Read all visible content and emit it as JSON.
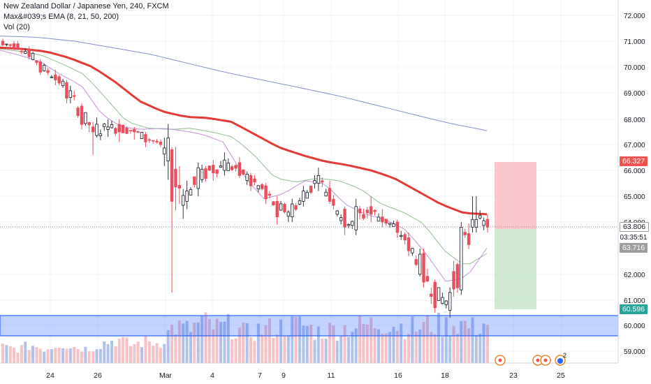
{
  "legend": {
    "title": "New Zealand Dollar / Japanese Yen, 240, FXCM",
    "ema": "Max&#039;s EMA (8, 21, 50, 200)",
    "vol": "Vol (20)"
  },
  "price_labels": {
    "stop": "66.327",
    "last": "63.806",
    "countdown": "03:35:51",
    "entry": "63.716",
    "target": "60.596"
  },
  "colors": {
    "up": "#53b987",
    "down": "#eb4d5c",
    "ema50": "#e53935",
    "ema200": "#7f8fc9",
    "ema21": "#8fbf8f",
    "ema8": "#c58fd6",
    "support_zone": "#2962ff",
    "stop_zone": "#ffcdd2",
    "target_zone": "#c8e6c9"
  },
  "events": {
    "markers": [
      "dividend-marker",
      "dividend-marker",
      "dividend-marker",
      "earnings-marker"
    ],
    "count_badge": "2"
  },
  "chart_data": {
    "type": "candlestick",
    "title": "New Zealand Dollar / Japanese Yen, 240, FXCM",
    "ylim": [
      58.3,
      72.4
    ],
    "y_ticks": [
      "72.000",
      "71.000",
      "70.000",
      "69.000",
      "68.000",
      "67.000",
      "66.000",
      "65.000",
      "64.000",
      "62.000",
      "61.000",
      "60.000",
      "59.000"
    ],
    "x_ticks": [
      "24",
      "26",
      "Mar",
      "4",
      "7",
      "9",
      "11",
      "16",
      "18",
      "23",
      "25"
    ],
    "ohlc_anchors": [
      [
        71.0,
        71.1,
        70.8,
        70.85
      ],
      [
        70.9,
        71.0,
        70.65,
        70.7
      ],
      [
        70.7,
        70.8,
        70.3,
        70.4
      ],
      [
        70.2,
        70.3,
        69.7,
        69.8
      ],
      [
        69.7,
        69.9,
        69.3,
        69.5
      ],
      [
        69.4,
        69.5,
        68.6,
        68.8
      ],
      [
        68.5,
        68.6,
        67.6,
        67.8
      ],
      [
        67.7,
        67.9,
        66.6,
        67.5
      ],
      [
        67.6,
        68.0,
        67.3,
        67.7
      ],
      [
        67.8,
        68.0,
        67.1,
        67.5
      ],
      [
        67.6,
        67.7,
        67.2,
        67.5
      ],
      [
        67.4,
        67.5,
        66.9,
        67.1
      ],
      [
        67.1,
        67.2,
        66.9,
        67.0
      ],
      [
        66.8,
        66.9,
        61.3,
        64.8
      ],
      [
        64.8,
        65.6,
        64.5,
        65.2
      ],
      [
        65.3,
        66.3,
        65.0,
        66.1
      ],
      [
        66.2,
        66.4,
        65.6,
        65.9
      ],
      [
        66.0,
        66.7,
        65.8,
        66.4
      ],
      [
        66.3,
        66.5,
        65.7,
        65.8
      ],
      [
        65.8,
        65.9,
        65.2,
        65.4
      ],
      [
        65.4,
        65.5,
        64.7,
        64.9
      ],
      [
        64.8,
        65.0,
        63.9,
        64.2
      ],
      [
        64.2,
        64.9,
        64.0,
        64.7
      ],
      [
        64.8,
        65.4,
        64.6,
        65.2
      ],
      [
        65.5,
        66.1,
        65.2,
        65.8
      ],
      [
        65.3,
        65.6,
        64.7,
        64.8
      ],
      [
        64.5,
        64.6,
        63.5,
        63.8
      ],
      [
        63.7,
        64.9,
        63.5,
        64.6
      ],
      [
        64.6,
        65.0,
        64.0,
        64.3
      ],
      [
        64.2,
        64.5,
        63.8,
        64.0
      ],
      [
        64.0,
        64.1,
        63.4,
        63.6
      ],
      [
        63.4,
        63.6,
        62.7,
        62.9
      ],
      [
        62.8,
        63.0,
        61.5,
        61.7
      ],
      [
        61.7,
        61.8,
        60.5,
        60.7
      ],
      [
        60.6,
        61.5,
        60.3,
        61.3
      ],
      [
        61.4,
        64.0,
        61.2,
        63.8
      ],
      [
        63.8,
        65.0,
        63.6,
        64.1
      ],
      [
        64.1,
        64.3,
        63.6,
        63.8
      ]
    ],
    "ema_levels": {
      "ema50": [
        70.75,
        70.7,
        70.6,
        70.35,
        70.0,
        69.4,
        68.7,
        68.3,
        68.1,
        68.05,
        67.9,
        67.4,
        66.9,
        66.6,
        66.35,
        66.2,
        66.0,
        65.7,
        65.2,
        64.7,
        64.35,
        64.3
      ],
      "ema200": [
        71.2,
        71.15,
        71.0,
        70.75,
        70.5,
        70.15,
        69.8,
        69.5,
        69.2,
        68.9,
        68.55,
        68.2,
        67.85,
        67.55
      ],
      "ema21": [
        70.7,
        70.6,
        70.45,
        70.1,
        69.7,
        68.8,
        67.9,
        67.65,
        67.6,
        67.65,
        67.5,
        67.3,
        66.6,
        65.7,
        65.55,
        65.7,
        65.6,
        65.3,
        64.7,
        64.4,
        63.95,
        62.9,
        62.3,
        62.8
      ],
      "ema8": [
        70.65,
        70.45,
        70.2,
        69.7,
        69.3,
        68.2,
        67.7,
        67.6,
        67.65,
        67.55,
        67.4,
        67.1,
        65.8,
        64.9,
        65.1,
        65.6,
        65.5,
        64.7,
        64.3,
        64.1,
        63.7,
        62.8,
        61.7,
        61.9,
        63.0
      ]
    },
    "volume_relative": [
      0.35,
      0.3,
      0.4,
      0.3,
      0.45,
      0.35,
      0.3,
      0.45,
      0.55,
      0.4,
      0.5,
      0.45,
      0.9,
      0.8,
      1.0,
      0.85,
      0.9,
      0.7,
      0.8,
      0.85,
      0.9,
      0.95,
      0.75,
      0.8,
      0.85,
      0.9,
      0.95,
      1.0,
      0.9,
      0.85,
      0.95,
      0.9,
      1.0,
      0.85,
      1.0
    ],
    "support_zone": [
      59.5,
      60.3
    ],
    "position": {
      "entry": 63.716,
      "stop": 66.327,
      "target": 60.596
    }
  }
}
